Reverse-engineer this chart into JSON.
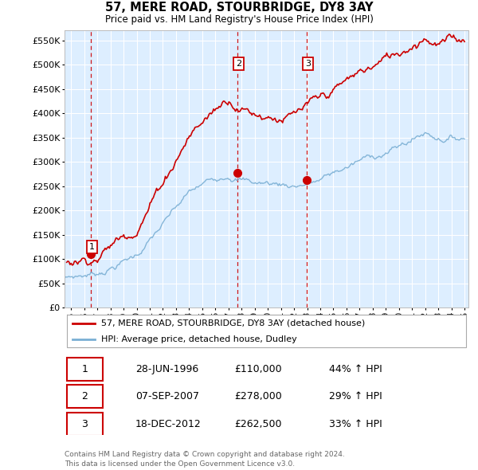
{
  "title": "57, MERE ROAD, STOURBRIDGE, DY8 3AY",
  "subtitle": "Price paid vs. HM Land Registry's House Price Index (HPI)",
  "legend_label_red": "57, MERE ROAD, STOURBRIDGE, DY8 3AY (detached house)",
  "legend_label_blue": "HPI: Average price, detached house, Dudley",
  "transaction_dates_num": [
    1996.49,
    2007.68,
    2012.97
  ],
  "transaction_prices": [
    110000,
    278000,
    262500
  ],
  "transaction_labels": [
    "1",
    "2",
    "3"
  ],
  "table_rows": [
    [
      "1",
      "28-JUN-1996",
      "£110,000",
      "44% ↑ HPI"
    ],
    [
      "2",
      "07-SEP-2007",
      "£278,000",
      "29% ↑ HPI"
    ],
    [
      "3",
      "18-DEC-2012",
      "£262,500",
      "33% ↑ HPI"
    ]
  ],
  "footer": "Contains HM Land Registry data © Crown copyright and database right 2024.\nThis data is licensed under the Open Government Licence v3.0.",
  "ylim": [
    0,
    570000
  ],
  "yticks": [
    0,
    50000,
    100000,
    150000,
    200000,
    250000,
    300000,
    350000,
    400000,
    450000,
    500000,
    550000
  ],
  "xlim_start": 1994.5,
  "xlim_end": 2025.3,
  "red_color": "#cc0000",
  "blue_color": "#7aafd4",
  "bg_chart": "#ddeeff",
  "grid_color": "#ffffff",
  "vline_color": "#cc0000"
}
